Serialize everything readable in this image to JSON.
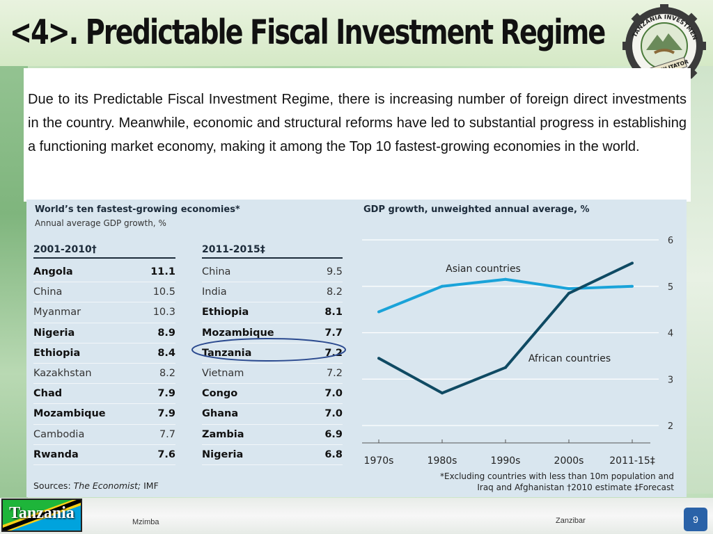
{
  "slide": {
    "title": "<4>. Predictable Fiscal Investment Regime",
    "body": "Due to its Predictable Fiscal Investment  Regime, there is increasing number of foreign direct investments in the country. Meanwhile, economic and structural reforms have led to substantial progress in establishing a functioning market economy, making it among the Top 10 fastest-growing economies in the world.",
    "logo_text": "TANZANIA INVESTMENT CENTRE",
    "logo_banner": "THE FACILITATOR",
    "footer": {
      "flag_label": "Tanzania",
      "location_left": "Mzimba",
      "location_right": "Zanzibar",
      "slide_number": "9"
    }
  },
  "figure": {
    "left_title": "World’s ten fastest-growing economies*",
    "left_subtitle": "Annual average GDP growth, %",
    "col1_header": "2001-2010†",
    "col2_header": "2011-2015‡",
    "sources_prefix": "Sources: ",
    "sources_italic": "The Economist;",
    "sources_suffix": " IMF",
    "highlight_color": "#2b4a8f",
    "footnote_line1": "*Excluding countries with less than 10m population and",
    "footnote_line2": "Iraq and Afghanistan   †2010 estimate   ‡Forecast"
  },
  "chart_data": [
    {
      "type": "table",
      "title": "World’s ten fastest-growing economies*",
      "subtitle": "Annual average GDP growth, %",
      "columns": [
        {
          "header": "2001-2010†",
          "rows": [
            {
              "country": "Angola",
              "value": "11.1",
              "bold": true
            },
            {
              "country": "China",
              "value": "10.5",
              "bold": false
            },
            {
              "country": "Myanmar",
              "value": "10.3",
              "bold": false
            },
            {
              "country": "Nigeria",
              "value": "8.9",
              "bold": true
            },
            {
              "country": "Ethiopia",
              "value": "8.4",
              "bold": true
            },
            {
              "country": "Kazakhstan",
              "value": "8.2",
              "bold": false
            },
            {
              "country": "Chad",
              "value": "7.9",
              "bold": true
            },
            {
              "country": "Mozambique",
              "value": "7.9",
              "bold": true
            },
            {
              "country": "Cambodia",
              "value": "7.7",
              "bold": false
            },
            {
              "country": "Rwanda",
              "value": "7.6",
              "bold": true
            }
          ]
        },
        {
          "header": "2011-2015‡",
          "rows": [
            {
              "country": "China",
              "value": "9.5",
              "bold": false
            },
            {
              "country": "India",
              "value": "8.2",
              "bold": false
            },
            {
              "country": "Ethiopia",
              "value": "8.1",
              "bold": true
            },
            {
              "country": "Mozambique",
              "value": "7.7",
              "bold": true
            },
            {
              "country": "Tanzania",
              "value": "7.2",
              "bold": true,
              "highlighted": true
            },
            {
              "country": "Vietnam",
              "value": "7.2",
              "bold": false
            },
            {
              "country": "Congo",
              "value": "7.0",
              "bold": true
            },
            {
              "country": "Ghana",
              "value": "7.0",
              "bold": true
            },
            {
              "country": "Zambia",
              "value": "6.9",
              "bold": true
            },
            {
              "country": "Nigeria",
              "value": "6.8",
              "bold": true
            }
          ]
        }
      ]
    },
    {
      "type": "line",
      "title": "GDP growth, unweighted annual average, %",
      "x": [
        "1970s",
        "1980s",
        "1990s",
        "2000s",
        "2011-15‡"
      ],
      "ylim": [
        2,
        6
      ],
      "yticks": [
        "2",
        "3",
        "4",
        "5",
        "6"
      ],
      "grid": true,
      "series": [
        {
          "name": "Asian countries",
          "color": "#1aa3d9",
          "values": [
            4.45,
            5.0,
            5.15,
            4.95,
            5.0
          ]
        },
        {
          "name": "African countries",
          "color": "#0f4a63",
          "values": [
            3.45,
            2.7,
            3.25,
            4.85,
            5.5
          ]
        }
      ]
    }
  ]
}
